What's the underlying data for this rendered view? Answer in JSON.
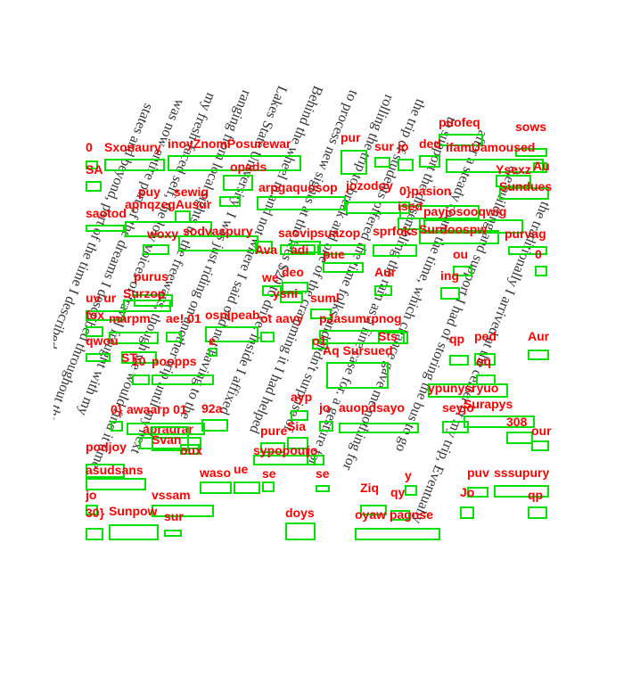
{
  "page": {
    "text_lines": [
      "the traditionally I arrived at the center of my trip, Eventually",
      "the building and support I had of storing the bus to go",
      "after a steady count the time, which chance gave me nothing for",
      "to support the dissembling the rain as a fine case for. a gesture for",
      "the trip of students offered the time folks and didn't surprise of",
      "rolling the trip to break and one of the cramming it I had helped",
      "to process new sights at the fees $20 to drive, inside I affixed",
      "Behind the wheel in and not where I said odd not having to the",
      "Lakes State University. I was just riding on another trip until my next",
      "ranging from local sights to the freeways, though we would find it time",
      "my fresh-faced self, the low voices of travel fraught with my",
      "was now entire part of the dreams I described throughout the Great",
      "states and beyond, part of the time I described throughout America's 50"
    ],
    "ocr_labels": [
      "puofeq",
      "sows",
      "pur",
      "sur",
      "jo",
      "ded",
      "ifamUamoused",
      "0",
      "Sxonaury",
      "inoyZnomPosurewar",
      "SA",
      "Au",
      "opads",
      "Ysexz",
      "Sundues",
      "puy",
      "sewig",
      "arpgaquosop",
      "jozodoy",
      "0}pasion",
      "apnqzegAusur",
      "ised",
      "payjosooqwig",
      "saotod",
      "woxy",
      "sodvaspury",
      "saovip",
      "suazop",
      "sprfoks",
      "Surdoospw",
      "purvag",
      "Ava",
      "adi",
      "pue",
      "ou",
      "0",
      "purus",
      "deo",
      "Aur",
      "ing",
      "uv ur",
      "Surzop",
      "we",
      "ysni",
      "suml",
      "fox",
      "marpm",
      "ae! 01",
      "osnipeab",
      "ot aavy",
      "pJasumrpnog",
      "qwou",
      "ST",
      "e",
      "o1",
      "Aq Sursued",
      "Sts",
      "qp",
      "ped",
      "Aur",
      "10",
      "poopps",
      "oq",
      "ypunysryuo",
      "0}",
      "awaarp 01",
      "92a",
      "ayp",
      "jo",
      "auopdsayo",
      "seyjo",
      "Surapys",
      "apraurar",
      "Sia",
      "308",
      "pure",
      "Svan",
      "sypopour",
      "jo",
      "oux",
      "our",
      "podjoy",
      "asudsans",
      "waso",
      "ue",
      "se",
      "se",
      "y",
      "puv",
      "sssupury",
      "jo",
      "vssam",
      "Ziq",
      "qy",
      "Jo",
      "qp",
      "30}",
      "Sunpow",
      "sur",
      "doys",
      "oyaw pagnse"
    ]
  }
}
